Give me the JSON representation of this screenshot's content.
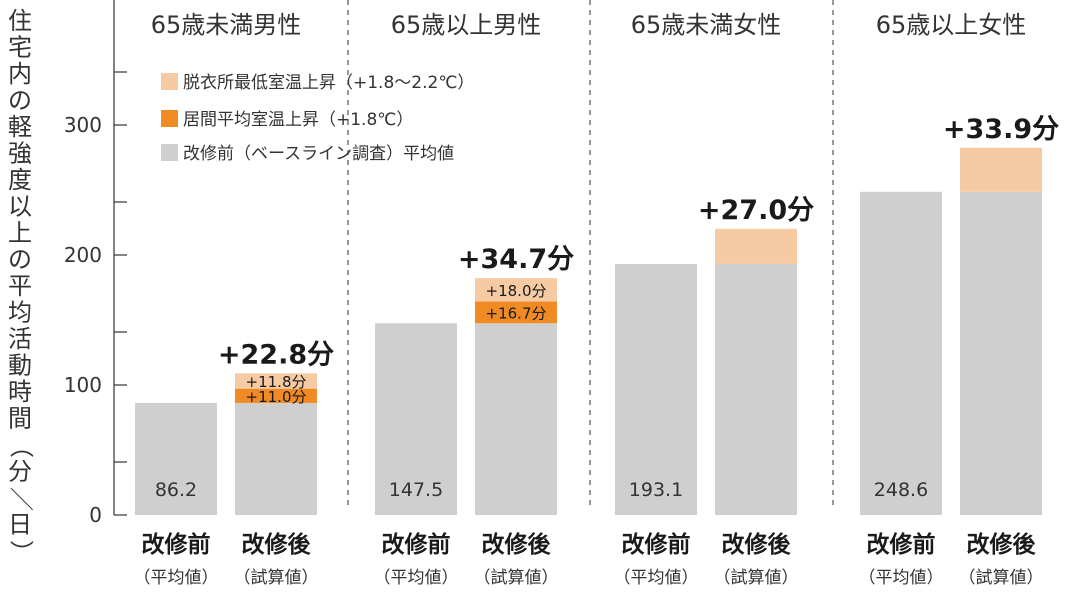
{
  "chart_data": {
    "type": "bar",
    "stacked": true,
    "ylabel": "住宅内の軽強度以上の平均活動時間（分／日）",
    "ylim": [
      0,
      380
    ],
    "yticks": [
      0,
      100,
      200,
      300
    ],
    "groups": [
      {
        "title": "65歳未満男性",
        "before": 86.2,
        "before_label": "86.2",
        "after_base": 86.2,
        "living": 11.0,
        "dressing": 11.8,
        "living_label": "+11.0分",
        "dressing_label": "+11.8分",
        "total_label": "+22.8分"
      },
      {
        "title": "65歳以上男性",
        "before": 147.5,
        "before_label": "147.5",
        "after_base": 147.5,
        "living": 16.7,
        "dressing": 18.0,
        "living_label": "+16.7分",
        "dressing_label": "+18.0分",
        "total_label": "+34.7分"
      },
      {
        "title": "65歳未満女性",
        "before": 193.1,
        "before_label": "193.1",
        "after_base": 193.1,
        "living": 0,
        "dressing": 27.0,
        "living_label": "",
        "dressing_label": "",
        "total_label": "+27.0分"
      },
      {
        "title": "65歳以上女性",
        "before": 248.6,
        "before_label": "248.6",
        "after_base": 248.6,
        "living": 0,
        "dressing": 33.9,
        "living_label": "",
        "dressing_label": "",
        "total_label": "+33.9分"
      }
    ],
    "categories": [
      {
        "main": "改修前",
        "sub": "（平均値）"
      },
      {
        "main": "改修後",
        "sub": "（試算値）"
      }
    ],
    "legend": [
      {
        "label": "脱衣所最低室温上昇（+1.8〜2.2℃）",
        "color": "#f6cba3"
      },
      {
        "label": "居間平均室温上昇（+1.8℃）",
        "color": "#f08a24"
      },
      {
        "label": "改修前（ベースライン調査）平均値",
        "color": "#cfcfcf"
      }
    ],
    "colors": {
      "base": "#cfcfcf",
      "living": "#f08a24",
      "dressing": "#f6cba3"
    }
  }
}
